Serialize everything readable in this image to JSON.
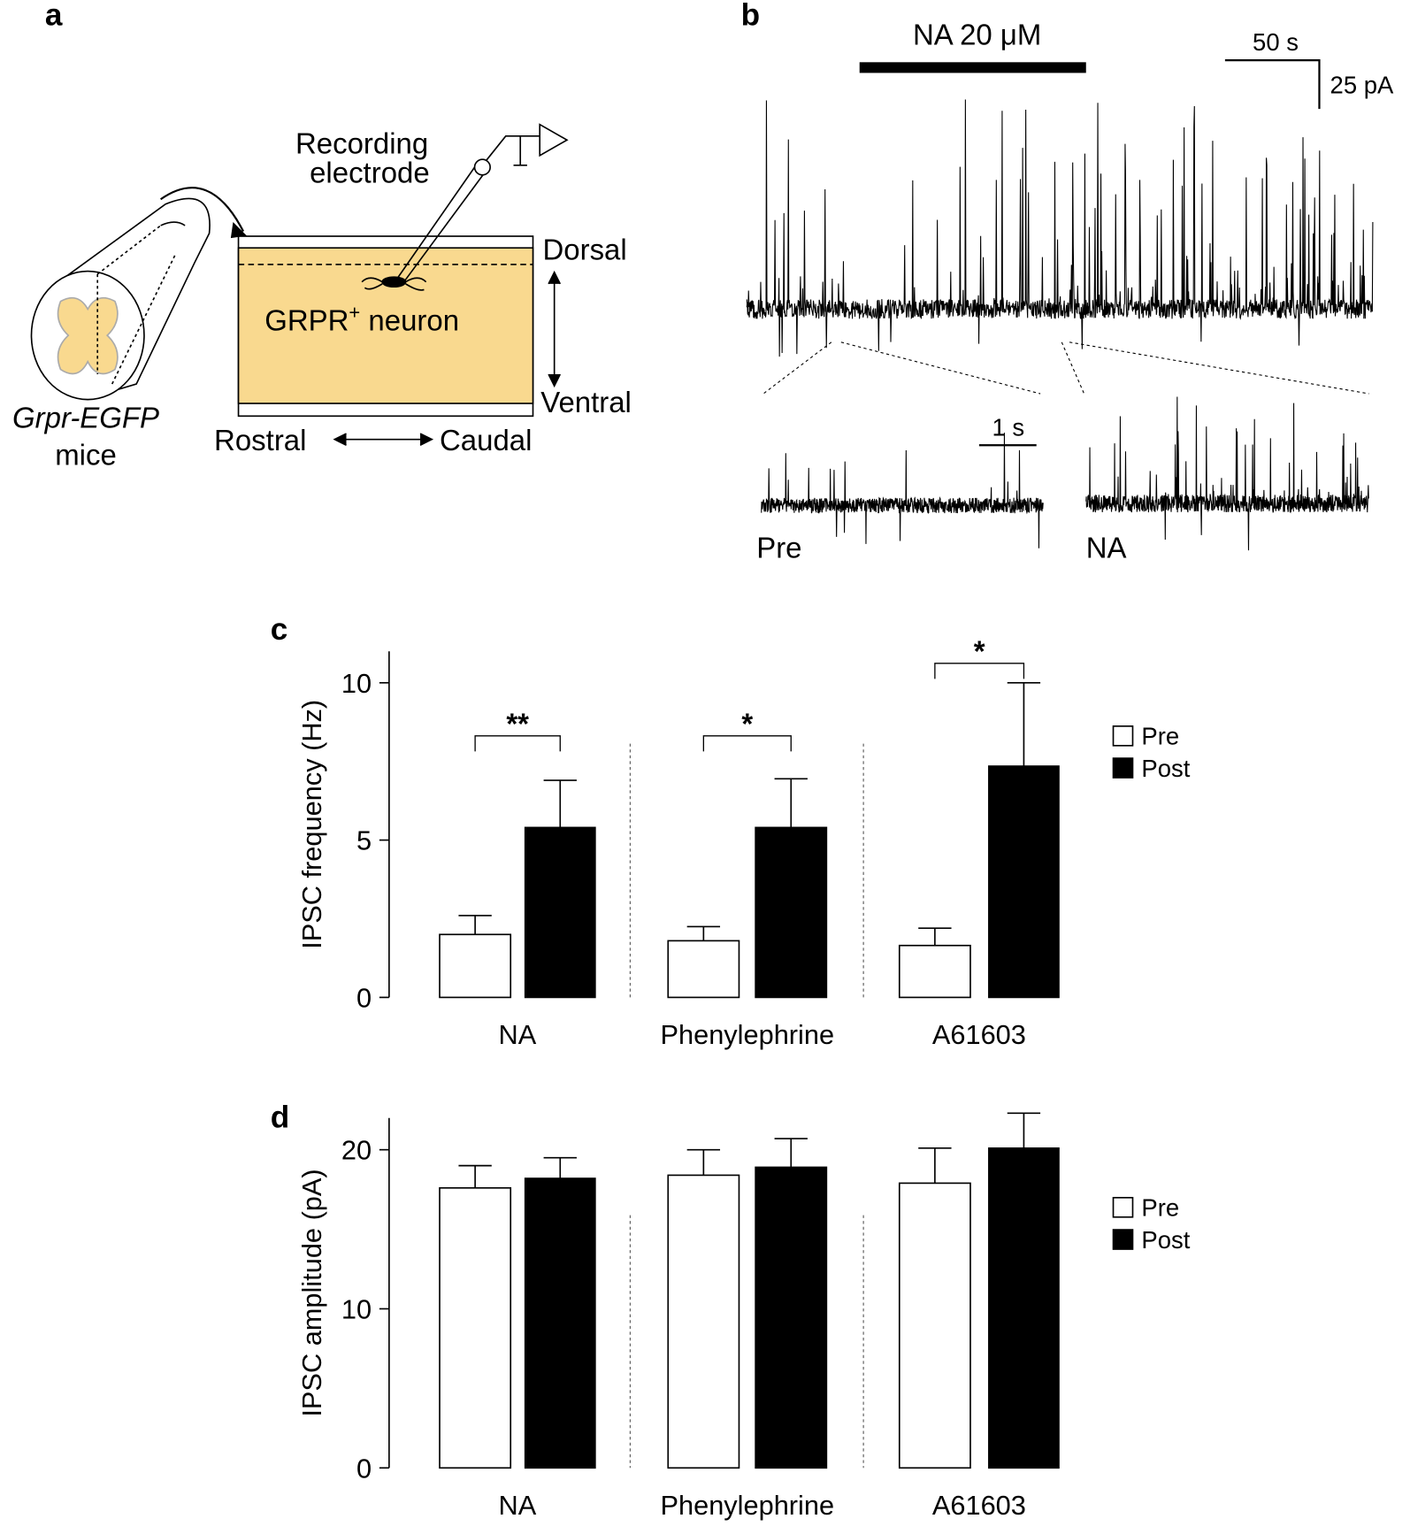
{
  "panel_labels": [
    "a",
    "b",
    "c",
    "d"
  ],
  "panel_a": {
    "electrode_label": [
      "Recording",
      "electrode"
    ],
    "dorsal": "Dorsal",
    "neuron": "GRPR",
    "neuron_sup": "+",
    "neuron_rest": " neuron",
    "ventral": "Ventral",
    "rostral": "Rostral",
    "caudal": "Caudal",
    "mouse": [
      "Grpr-EGFP",
      "mice"
    ]
  },
  "panel_b": {
    "drug": "NA 20 μM",
    "time_scale": "50 s",
    "current_scale": "25 pA",
    "inset_scale": "1 s",
    "inset_labels": [
      "Pre",
      "NA"
    ]
  },
  "chart_data": [
    {
      "type": "bar",
      "y_label": "IPSC frequency (Hz)",
      "categories": [
        "NA",
        "Phenylephrine",
        "A61603"
      ],
      "series": [
        {
          "name": "Pre",
          "color": "#ffffff",
          "values": [
            2.0,
            1.8,
            1.65
          ],
          "errors": [
            0.6,
            0.45,
            0.55
          ]
        },
        {
          "name": "Post",
          "color": "#000000",
          "values": [
            5.4,
            5.4,
            7.35
          ],
          "errors": [
            1.5,
            1.55,
            2.65
          ]
        }
      ],
      "annotations": [
        "**",
        "*",
        "*"
      ],
      "ylim": [
        0,
        11
      ],
      "yticks": [
        0,
        5,
        10
      ]
    },
    {
      "type": "bar",
      "y_label": "IPSC amplitude (pA)",
      "categories": [
        "NA",
        "Phenylephrine",
        "A61603"
      ],
      "series": [
        {
          "name": "Pre",
          "color": "#ffffff",
          "values": [
            17.6,
            18.4,
            17.9
          ],
          "errors": [
            1.4,
            1.6,
            2.2
          ]
        },
        {
          "name": "Post",
          "color": "#000000",
          "values": [
            18.2,
            18.9,
            20.1
          ],
          "errors": [
            1.3,
            1.8,
            2.2
          ]
        }
      ],
      "ylim": [
        0,
        22
      ],
      "yticks": [
        0,
        10,
        20
      ]
    }
  ]
}
